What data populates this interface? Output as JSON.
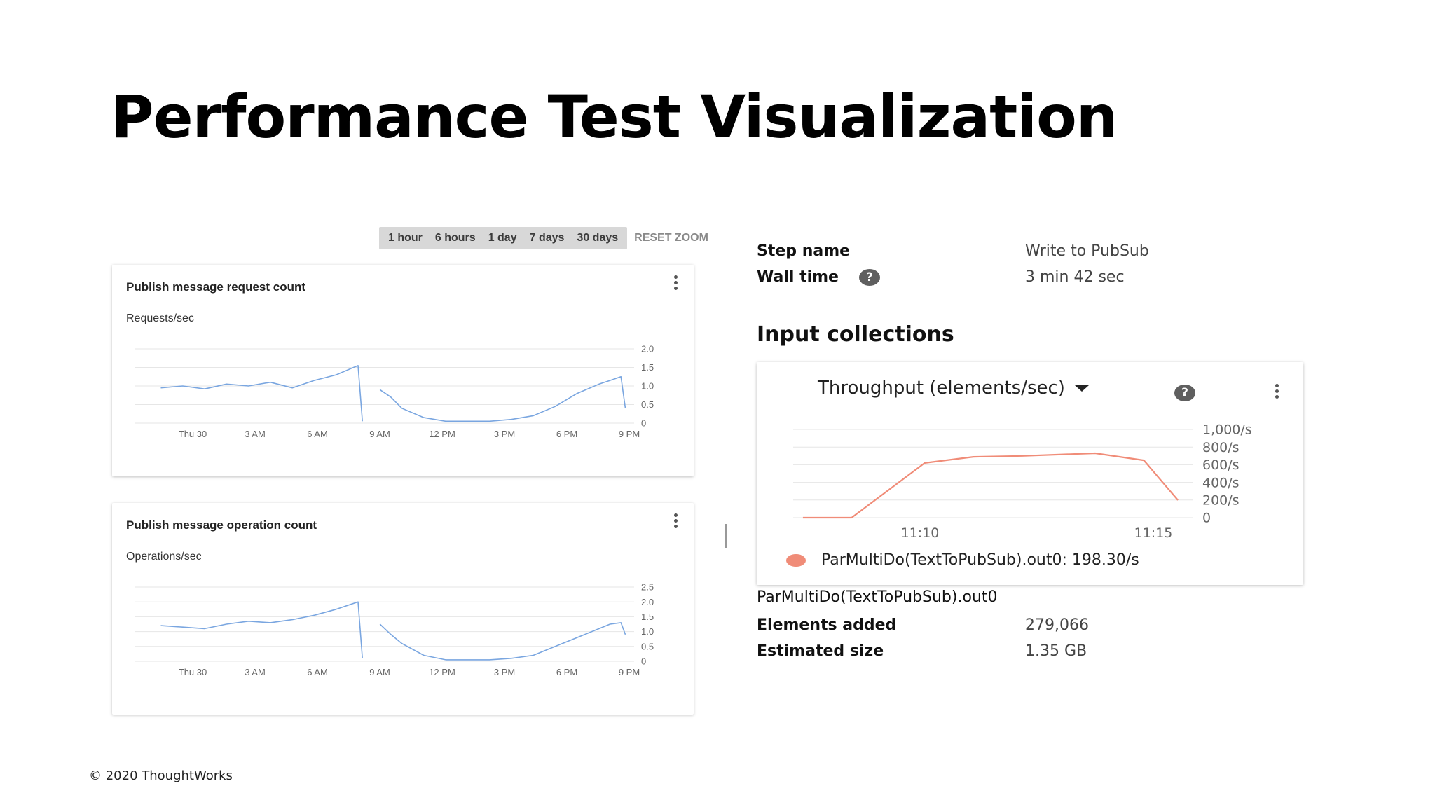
{
  "slide": {
    "title": "Performance Test Visualization",
    "footer": "© 2020 ThoughtWorks"
  },
  "toolbar": {
    "ranges": [
      "1 hour",
      "6 hours",
      "1 day",
      "7 days",
      "30 days"
    ],
    "reset_label": "RESET ZOOM"
  },
  "colors": {
    "series_blue": "#7aa6e0",
    "series_orange": "#f08c78",
    "grid": "#e6e6e6",
    "axis_text": "#666666"
  },
  "metrics": {
    "publish_requests": {
      "title": "Publish message request count",
      "subtitle": "Requests/sec"
    },
    "publish_operations": {
      "title": "Publish message operation count",
      "subtitle": "Operations/sec"
    }
  },
  "details": {
    "step_name_label": "Step name",
    "step_name_value": "Write to PubSub",
    "wall_time_label": "Wall time",
    "wall_time_value": "3 min 42 sec",
    "input_collections_title": "Input collections",
    "throughput_selector": "Throughput (elements/sec)",
    "legend_entry": "ParMultiDo(TextToPubSub).out0: 198.30/s",
    "collection_name": "ParMultiDo(TextToPubSub).out0",
    "elements_added_label": "Elements added",
    "elements_added_value": "279,066",
    "estimated_size_label": "Estimated size",
    "estimated_size_value": "1.35 GB"
  },
  "chart_data": [
    {
      "type": "line",
      "ylabel": "Requests/sec",
      "x_ticks": [
        "Thu 30",
        "3 AM",
        "6 AM",
        "9 AM",
        "12 PM",
        "3 PM",
        "6 PM",
        "9 PM"
      ],
      "y_ticks": [
        "2.0",
        "1.5",
        "1.0",
        "0.5",
        "0"
      ],
      "ylim": [
        0,
        2.0
      ],
      "x_hours": [
        0,
        1,
        2,
        3,
        4,
        5,
        6,
        7,
        8,
        9,
        9.2,
        9.6,
        10,
        10.5,
        11,
        12,
        13,
        14,
        15,
        16,
        17,
        18,
        19,
        20,
        20.5,
        21,
        21.2
      ],
      "values": [
        0.95,
        1.0,
        0.92,
        1.05,
        1.0,
        1.1,
        0.95,
        1.15,
        1.3,
        1.55,
        0.05,
        null,
        0.9,
        0.7,
        0.4,
        0.15,
        0.05,
        0.05,
        0.05,
        0.1,
        0.2,
        0.45,
        0.8,
        1.05,
        1.15,
        1.25,
        0.4
      ],
      "grid": true
    },
    {
      "type": "line",
      "ylabel": "Operations/sec",
      "x_ticks": [
        "Thu 30",
        "3 AM",
        "6 AM",
        "9 AM",
        "12 PM",
        "3 PM",
        "6 PM",
        "9 PM"
      ],
      "y_ticks": [
        "2.5",
        "2.0",
        "1.5",
        "1.0",
        "0.5",
        "0"
      ],
      "ylim": [
        0,
        2.5
      ],
      "x_hours": [
        0,
        1,
        2,
        3,
        4,
        5,
        6,
        7,
        8,
        9,
        9.2,
        9.6,
        10,
        10.5,
        11,
        12,
        13,
        14,
        15,
        16,
        17,
        18,
        19,
        20,
        20.5,
        21,
        21.2
      ],
      "values": [
        1.2,
        1.15,
        1.1,
        1.25,
        1.35,
        1.3,
        1.4,
        1.55,
        1.75,
        2.0,
        0.1,
        null,
        1.25,
        0.9,
        0.6,
        0.2,
        0.05,
        0.05,
        0.05,
        0.1,
        0.2,
        0.5,
        0.8,
        1.1,
        1.25,
        1.3,
        0.9
      ],
      "grid": true
    },
    {
      "type": "line",
      "title": "Throughput (elements/sec)",
      "x_ticks": [
        "11:10",
        "11:15"
      ],
      "y_ticks": [
        "1,000/s",
        "800/s",
        "600/s",
        "400/s",
        "200/s",
        "0"
      ],
      "ylim": [
        0,
        1000
      ],
      "x_minutes": [
        8.5,
        9.5,
        11.0,
        12.0,
        13.0,
        14.5,
        15.5,
        16.2
      ],
      "values": [
        0,
        0,
        620,
        690,
        700,
        730,
        650,
        198.3
      ],
      "series": [
        {
          "name": "ParMultiDo(TextToPubSub).out0",
          "values": [
            0,
            0,
            620,
            690,
            700,
            730,
            650,
            198.3
          ]
        }
      ],
      "grid": true
    }
  ]
}
